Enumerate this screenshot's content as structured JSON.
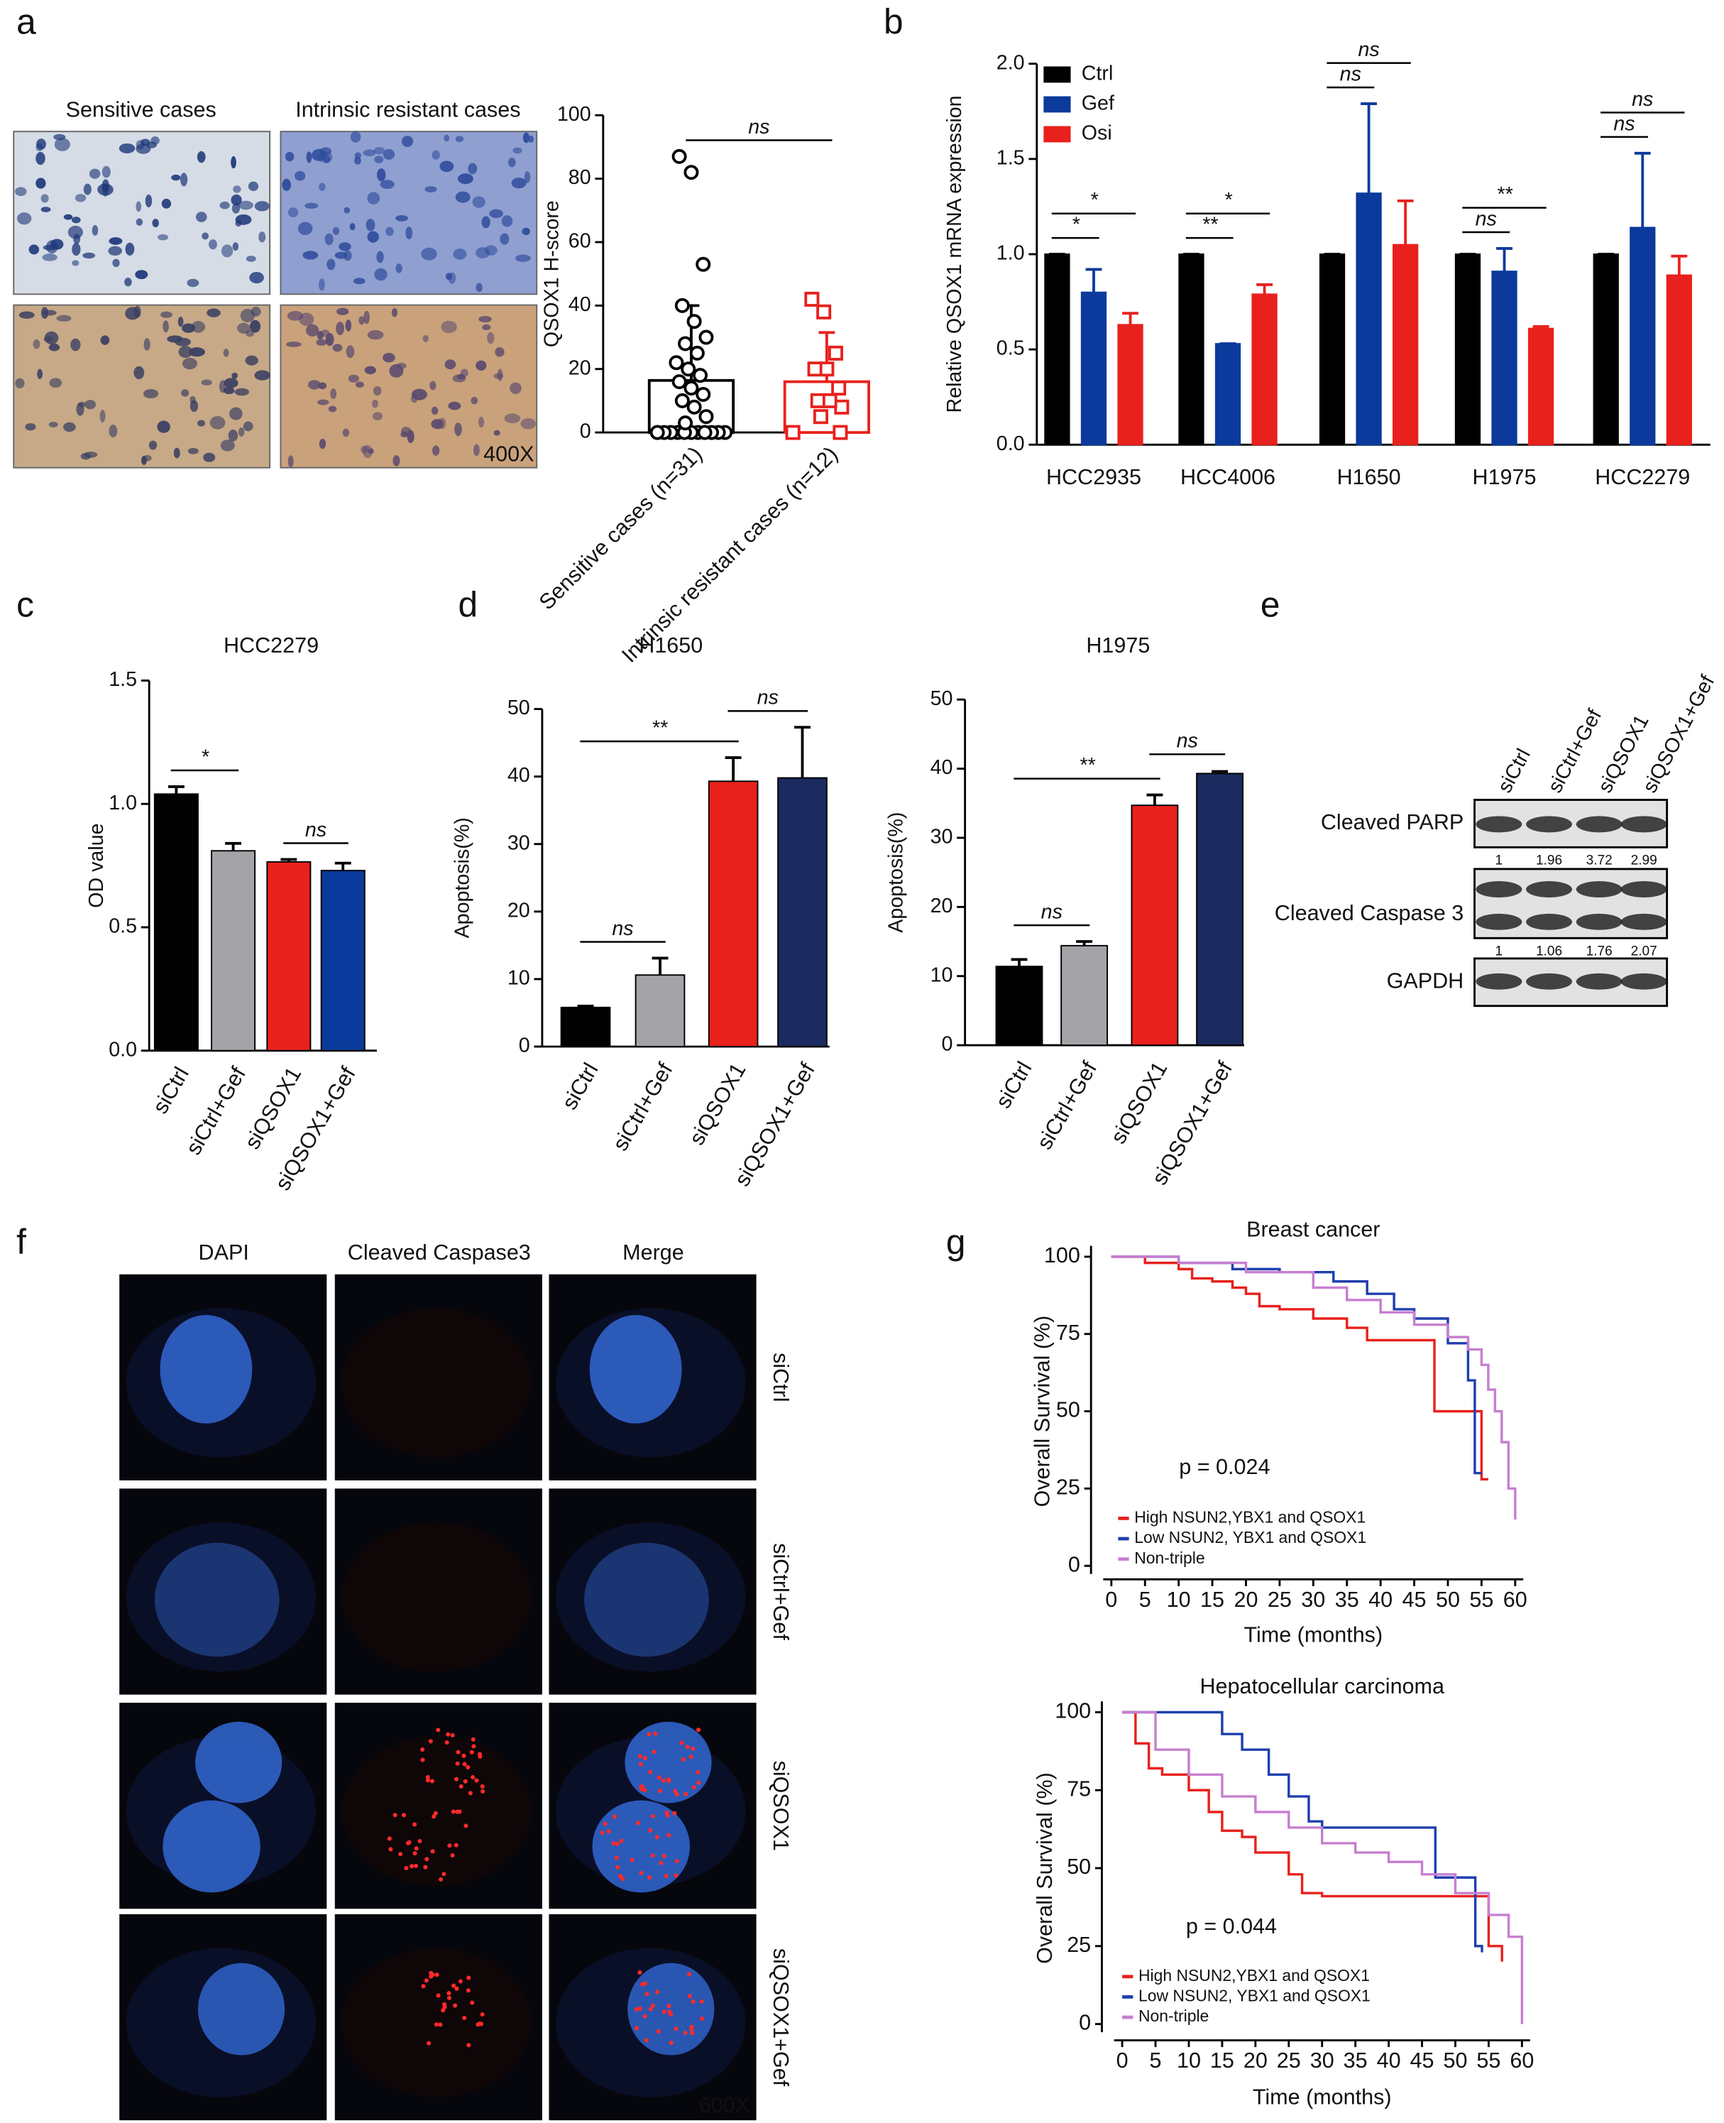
{
  "figure": {
    "panel_labels": [
      "a",
      "b",
      "c",
      "d",
      "e",
      "f",
      "g"
    ],
    "ihc": {
      "columns": [
        "Sensitive cases",
        "Intrinsic resistant cases"
      ],
      "magnification": "400X"
    },
    "western_blot": {
      "lanes": [
        "siCtrl",
        "siCtrl+Gef",
        "siQSOX1",
        "siQSOX1+Gef"
      ],
      "rows": [
        {
          "label": "Cleaved PARP",
          "quantification": [
            1,
            1.96,
            3.72,
            2.99
          ]
        },
        {
          "label": "Cleaved Caspase 3",
          "quantification": [
            1,
            1.06,
            1.76,
            2.07
          ]
        },
        {
          "label": "GAPDH"
        }
      ]
    },
    "immunofluorescence": {
      "columns": [
        "DAPI",
        "Cleaved Caspase3",
        "Merge"
      ],
      "column_colors": [
        "#2a7be4",
        "#e8211d",
        "#000000"
      ],
      "rows": [
        "siCtrl",
        "siCtrl+Gef",
        "siQSOX1",
        "siQSOX1+Gef"
      ],
      "magnification": "600X",
      "magnification_color": "#33c23a"
    }
  },
  "chart_data": [
    {
      "type": "dotbar",
      "ylabel": "QSOX1 H-score",
      "categories": [
        "Sensitive cases (n=31)",
        "Intrinsic resistant cases (n=12)"
      ],
      "values": [
        16.4,
        16
      ],
      "errors": [
        23.6,
        15.5
      ],
      "points": [
        [
          0,
          0,
          0,
          0,
          0,
          0,
          0,
          0,
          0,
          0,
          0,
          0,
          0,
          3,
          5,
          8,
          10,
          12,
          14,
          16,
          18,
          20,
          22,
          25,
          28,
          30,
          35,
          40,
          53,
          82,
          87
        ],
        [
          0,
          0,
          5,
          8,
          10,
          10,
          14,
          20,
          20,
          25,
          38,
          42
        ]
      ],
      "colors": [
        "#000000",
        "#e8211d"
      ],
      "markers": [
        "circle",
        "square"
      ],
      "ylim": [
        0,
        100
      ],
      "yticks": [
        0,
        20,
        40,
        60,
        80,
        100
      ],
      "significance": [
        {
          "from": 0,
          "to": 1,
          "text": "ns"
        }
      ]
    },
    {
      "type": "bar",
      "ylabel": "Relative QSOX1 mRNA expression",
      "categories": [
        "HCC2935",
        "HCC4006",
        "H1650",
        "H1975",
        "HCC2279"
      ],
      "series": [
        {
          "name": "Ctrl",
          "color": "#000000",
          "values": [
            1,
            1,
            1,
            1,
            1
          ],
          "errors": [
            0,
            0,
            0,
            0,
            0
          ]
        },
        {
          "name": "Gef",
          "color": "#0b3a9c",
          "values": [
            0.8,
            0.53,
            1.32,
            0.91,
            1.14
          ],
          "errors": [
            0.12,
            0,
            0.47,
            0.12,
            0.39
          ]
        },
        {
          "name": "Osi",
          "color": "#e8211d",
          "values": [
            0.63,
            0.79,
            1.05,
            0.61,
            0.89
          ],
          "errors": [
            0.06,
            0.05,
            0.23,
            0.01,
            0.1
          ]
        }
      ],
      "ylim": [
        0,
        2
      ],
      "yticks": [
        {
          "value": 0,
          "label": "0.0"
        },
        0.5,
        {
          "value": 1,
          "label": "1.0"
        },
        1.5,
        {
          "value": 2,
          "label": "2.0"
        }
      ],
      "legend": "upper left",
      "significance": [
        {
          "category": 0,
          "from": 0,
          "to": 1,
          "text": "*"
        },
        {
          "category": 0,
          "from": 0,
          "to": 2,
          "text": "*"
        },
        {
          "category": 1,
          "from": 0,
          "to": 1,
          "text": "**"
        },
        {
          "category": 1,
          "from": 0,
          "to": 2,
          "text": "*"
        },
        {
          "category": 2,
          "from": 0,
          "to": 1,
          "text": "ns"
        },
        {
          "category": 2,
          "from": 0,
          "to": 2,
          "text": "ns"
        },
        {
          "category": 3,
          "from": 0,
          "to": 1,
          "text": "ns"
        },
        {
          "category": 3,
          "from": 0,
          "to": 2,
          "text": "**"
        },
        {
          "category": 4,
          "from": 0,
          "to": 1,
          "text": "ns"
        },
        {
          "category": 4,
          "from": 0,
          "to": 2,
          "text": "ns"
        }
      ]
    },
    {
      "type": "bar",
      "title": "HCC2279",
      "ylabel": "OD value",
      "categories": [
        "siCtrl",
        "siCtrl+Gef",
        "siQSOX1",
        "siQSOX1+Gef"
      ],
      "values": [
        1.04,
        0.81,
        0.765,
        0.73
      ],
      "errors": [
        0.03,
        0.03,
        0.01,
        0.03
      ],
      "colors": [
        "#000000",
        "#a3a3a8",
        "#e8211d",
        "#0b3a9c"
      ],
      "ylim": [
        0,
        1.5
      ],
      "yticks": [
        {
          "value": 0,
          "label": "0.0"
        },
        0.5,
        {
          "value": 1,
          "label": "1.0"
        },
        1.5
      ],
      "significance": [
        {
          "from": 0,
          "to": 1,
          "text": "*"
        },
        {
          "from": 2,
          "to": 3,
          "text": "ns"
        }
      ]
    },
    {
      "type": "bar",
      "title": "H1650",
      "ylabel": "Apoptosis(%)",
      "categories": [
        "siCtrl",
        "siCtrl+Gef",
        "siQSOX1",
        "siQSOX1+Gef"
      ],
      "values": [
        5.8,
        10.6,
        39.3,
        39.8
      ],
      "errors": [
        0.2,
        2.5,
        3.5,
        7.5
      ],
      "colors": [
        "#000000",
        "#a3a3a8",
        "#e8211d",
        "#1b2a5e"
      ],
      "ylim": [
        0,
        50
      ],
      "yticks": [
        0,
        10,
        20,
        30,
        40,
        50
      ],
      "significance": [
        {
          "from": 0,
          "to": 1,
          "text": "ns"
        },
        {
          "from": 0,
          "to": 2,
          "text": "**"
        },
        {
          "from": 2,
          "to": 3,
          "text": "ns"
        }
      ]
    },
    {
      "type": "bar",
      "title": "H1975",
      "ylabel": "Apoptosis(%)",
      "categories": [
        "siCtrl",
        "siCtrl+Gef",
        "siQSOX1",
        "siQSOX1+Gef"
      ],
      "values": [
        11.4,
        14.4,
        34.7,
        39.3
      ],
      "errors": [
        1,
        0.6,
        1.5,
        0.3
      ],
      "colors": [
        "#000000",
        "#a3a3a8",
        "#e8211d",
        "#1b2a5e"
      ],
      "ylim": [
        0,
        50
      ],
      "yticks": [
        0,
        10,
        20,
        30,
        40,
        50
      ],
      "significance": [
        {
          "from": 0,
          "to": 1,
          "text": "ns"
        },
        {
          "from": 0,
          "to": 2,
          "text": "**"
        },
        {
          "from": 2,
          "to": 3,
          "text": "ns"
        }
      ]
    },
    {
      "type": "line",
      "step": true,
      "title": "Breast cancer",
      "xlabel": "Time (months)",
      "ylabel": "Overall Survival (%)",
      "annotations": [
        {
          "text": "p = 0.024"
        }
      ],
      "legend": "lower left",
      "xlim": [
        0,
        60
      ],
      "xticks": [
        0,
        5,
        10,
        15,
        20,
        25,
        30,
        35,
        40,
        45,
        50,
        55,
        60
      ],
      "ylim": [
        0,
        100
      ],
      "yticks": [
        0,
        25,
        50,
        75,
        100
      ],
      "series": [
        {
          "name": "High NSUN2,YBX1 and QSOX1",
          "color": "#e8211d",
          "x": [
            0,
            5,
            10,
            12,
            15,
            18,
            20,
            22,
            25,
            30,
            35,
            38,
            47,
            48,
            55,
            56
          ],
          "values": [
            100,
            98,
            96,
            93,
            92,
            90,
            88,
            84,
            83,
            80,
            77,
            73,
            73,
            50,
            28,
            28
          ]
        },
        {
          "name": "Low NSUN2, YBX1 and QSOX1",
          "color": "#1f3fae",
          "x": [
            0,
            10,
            18,
            25,
            33,
            38,
            42,
            45,
            50,
            53,
            54,
            55
          ],
          "values": [
            100,
            98,
            96,
            95,
            92,
            88,
            83,
            80,
            72,
            60,
            30,
            30
          ]
        },
        {
          "name": "Non-triple",
          "color": "#c77fd0",
          "x": [
            0,
            10,
            20,
            30,
            35,
            40,
            45,
            50,
            53,
            55,
            56,
            57,
            58,
            59,
            60
          ],
          "values": [
            100,
            98,
            95,
            90,
            86,
            82,
            78,
            74,
            70,
            65,
            57,
            50,
            40,
            25,
            15
          ]
        }
      ]
    },
    {
      "type": "line",
      "step": true,
      "title": "Hepatocellular carcinoma",
      "xlabel": "Time (months)",
      "ylabel": "Overall Survival (%)",
      "annotations": [
        {
          "text": "p = 0.044"
        }
      ],
      "legend": "lower left",
      "xlim": [
        0,
        60
      ],
      "xticks": [
        0,
        5,
        10,
        15,
        20,
        25,
        30,
        35,
        40,
        45,
        50,
        55,
        60
      ],
      "ylim": [
        0,
        100
      ],
      "yticks": [
        0,
        25,
        50,
        75,
        100
      ],
      "series": [
        {
          "name": "High NSUN2,YBX1 and QSOX1",
          "color": "#e8211d",
          "x": [
            0,
            2,
            4,
            6,
            10,
            13,
            15,
            18,
            20,
            25,
            27,
            30,
            55,
            57
          ],
          "values": [
            100,
            90,
            82,
            80,
            75,
            68,
            62,
            60,
            55,
            48,
            42,
            41,
            25,
            20
          ]
        },
        {
          "name": "Low NSUN2, YBX1 and QSOX1",
          "color": "#1f3fae",
          "x": [
            0,
            15,
            18,
            22,
            25,
            28,
            30,
            47,
            53,
            54
          ],
          "values": [
            100,
            93,
            88,
            80,
            73,
            65,
            63,
            47,
            25,
            23
          ]
        },
        {
          "name": "Non-triple",
          "color": "#c77fd0",
          "x": [
            0,
            5,
            10,
            15,
            20,
            25,
            30,
            35,
            40,
            45,
            50,
            55,
            58,
            60
          ],
          "values": [
            100,
            88,
            80,
            73,
            68,
            63,
            58,
            55,
            52,
            48,
            42,
            35,
            28,
            0
          ]
        }
      ]
    }
  ]
}
